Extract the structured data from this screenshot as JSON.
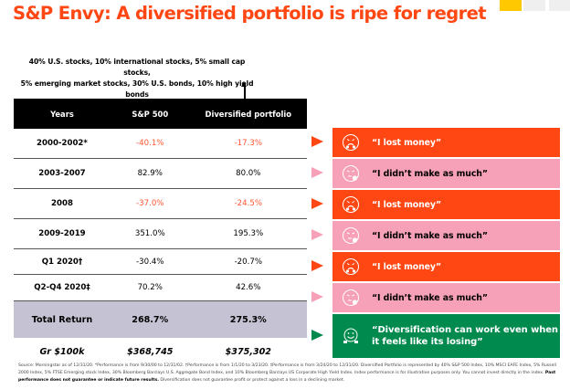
{
  "title": "S&P Envy: A diversified portfolio is ripe for regret",
  "allocation_note": {
    "line1": "40% U.S. stocks, 10% international stocks, 5% small cap stocks,",
    "line2": "5% emerging market stocks, 30% U.S. bonds, 10% high yield bonds"
  },
  "table": {
    "headers": [
      "Years",
      "S&P 500",
      "Diversified portfolio"
    ],
    "rows": [
      {
        "year": "2000-2002*",
        "sp500": "-40.1%",
        "diversified": "-17.3%",
        "negative_color": true
      },
      {
        "year": "2003-2007",
        "sp500": "82.9%",
        "diversified": "80.0%",
        "negative_color": false
      },
      {
        "year": "2008",
        "sp500": "-37.0%",
        "diversified": "-24.5%",
        "negative_color": true
      },
      {
        "year": "2009-2019",
        "sp500": "351.0%",
        "diversified": "195.3%",
        "negative_color": false
      },
      {
        "year": "Q1 2020†",
        "sp500": "-30.4%",
        "diversified": "-20.7%",
        "negative_color": false
      },
      {
        "year": "Q2-Q4 2020‡",
        "sp500": "70.2%",
        "diversified": "42.6%",
        "negative_color": false
      }
    ],
    "total": {
      "label": "Total Return",
      "sp500": "268.7%",
      "diversified": "275.3%"
    },
    "growth": {
      "label": "Gr $100k",
      "sp500": "$368,745",
      "diversified": "$375,302"
    }
  },
  "reactions": [
    {
      "text": "“I lost money”",
      "style": "orange",
      "icon": "angry-face-icon"
    },
    {
      "text": "“I didn’t make as much”",
      "style": "pink",
      "icon": "frustrated-face-icon"
    },
    {
      "text": "“I lost money”",
      "style": "orange",
      "icon": "angry-face-icon"
    },
    {
      "text": "“I didn’t make as much”",
      "style": "pink",
      "icon": "frustrated-face-icon"
    },
    {
      "text": "“I lost money”",
      "style": "orange",
      "icon": "angry-face-icon"
    },
    {
      "text": "“I didn’t make as much”",
      "style": "pink",
      "icon": "frustrated-face-icon"
    },
    {
      "text_line1": "“Diversification can work even when",
      "text_line2": "it feels like its losing”",
      "style": "green",
      "icon": "smiling-face-icon"
    }
  ],
  "colors": {
    "brand_orange": "#ff4713",
    "pink": "#f7a1b8",
    "green": "#008a4e",
    "yellow": "#ffc800",
    "total_row": "#c5c3d3",
    "negative_text": "#ff5533"
  },
  "footnote": {
    "part1": "Source: Morningstar as of 12/31/20. *Performance is from 9/30/00 to 12/31/02. †Performance is from 1/1/20 to 3/23/20. ‡Performance is from 3/24/20 to 12/31/20. Diversified Portfolio is represented by 40% S&P 500 Index, 10% MSCI EAFE Index, 5% Russell 2000 Index, 5% FTSE Emerging stock Index, 30% Bloomberg Barclays U.S. Aggregate Bond Index, and 10% Bloomberg Barclays US Corporate High Yield Index. Index performance is for illustrative purposes only. You cannot invest directly in the index.",
    "bold": "Past performance does not guarantee or indicate future results.",
    "part2": "Diversification does not guarantee profit or protect against a loss in a declining market."
  }
}
